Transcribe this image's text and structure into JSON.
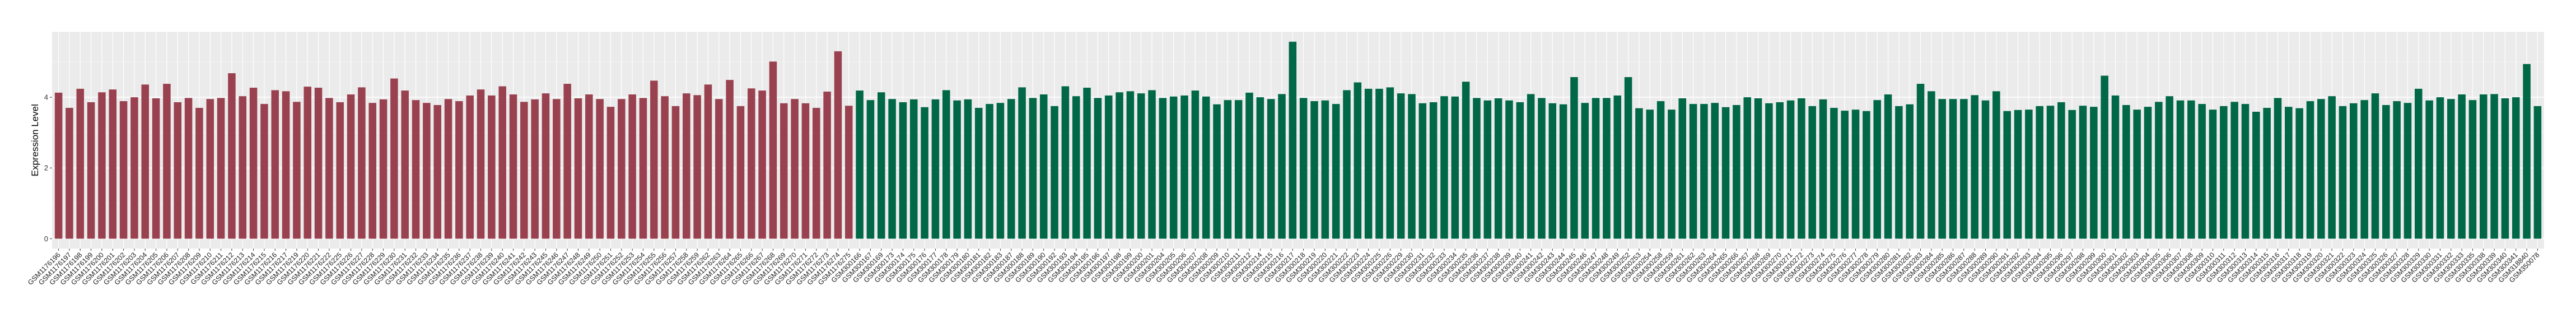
{
  "chart_data": {
    "type": "bar",
    "title": "",
    "xlabel": "",
    "ylabel": "Expression Level",
    "ylim": [
      -0.28,
      5.85
    ],
    "yticks": [
      0,
      2,
      4
    ],
    "grid": true,
    "panel_background": "#EBEBEB",
    "series": [
      {
        "color": "#9A4150",
        "categories": [
          "GSM1176196",
          "GSM1176197",
          "GSM1176198",
          "GSM1176199",
          "GSM1176200",
          "GSM1176201",
          "GSM1176202",
          "GSM1176203",
          "GSM1176204",
          "GSM1176205",
          "GSM1176206",
          "GSM1176207",
          "GSM1176208",
          "GSM1176209",
          "GSM1176210",
          "GSM1176211",
          "GSM1176212",
          "GSM1176213",
          "GSM1176214",
          "GSM1176215",
          "GSM1176216",
          "GSM1176217",
          "GSM1176219",
          "GSM1176220",
          "GSM1176221",
          "GSM1176222",
          "GSM1176225",
          "GSM1176226",
          "GSM1176227",
          "GSM1176228",
          "GSM1176229",
          "GSM1176230",
          "GSM1176231",
          "GSM1176232",
          "GSM1176233",
          "GSM1176234",
          "GSM1176235",
          "GSM1176236",
          "GSM1176237",
          "GSM1176238",
          "GSM1176239",
          "GSM1176240",
          "GSM1176241",
          "GSM1176242",
          "GSM1176243",
          "GSM1176245",
          "GSM1176246",
          "GSM1176247",
          "GSM1176248",
          "GSM1176249",
          "GSM1176250",
          "GSM1176251",
          "GSM1176252",
          "GSM1176253",
          "GSM1176254",
          "GSM1176255",
          "GSM1176256",
          "GSM1176257",
          "GSM1176258",
          "GSM1176259",
          "GSM1176262",
          "GSM1176263",
          "GSM1176264",
          "GSM1176265",
          "GSM1176266",
          "GSM1176267",
          "GSM1176268",
          "GSM1176269",
          "GSM1176270",
          "GSM1176271",
          "GSM1176272",
          "GSM1176273",
          "GSM1176274",
          "GSM1176275"
        ],
        "values": [
          4.13,
          3.7,
          4.24,
          3.86,
          4.14,
          4.22,
          3.89,
          4.0,
          4.36,
          3.97,
          4.38,
          3.86,
          3.98,
          3.7,
          3.95,
          3.98,
          4.68,
          4.03,
          4.27,
          3.81,
          4.2,
          4.17,
          3.87,
          4.3,
          4.27,
          3.98,
          3.86,
          4.08,
          4.28,
          3.84,
          3.94,
          4.53,
          4.19,
          3.92,
          3.84,
          3.78,
          3.95,
          3.89,
          4.05,
          4.22,
          4.05,
          4.31,
          4.08,
          3.87,
          3.94,
          4.11,
          3.95,
          4.38,
          3.97,
          4.08,
          3.95,
          3.73,
          3.95,
          4.08,
          3.98,
          4.47,
          4.03,
          3.75,
          4.11,
          4.06,
          4.36,
          3.95,
          4.49,
          3.75,
          4.25,
          4.19,
          5.01,
          3.83,
          3.95,
          3.83,
          3.7,
          4.16,
          5.3,
          3.76
        ]
      },
      {
        "color": "#006846",
        "categories": [
          "GSM300166",
          "GSM300167",
          "GSM300169",
          "GSM300173",
          "GSM300174",
          "GSM300175",
          "GSM300176",
          "GSM300177",
          "GSM300178",
          "GSM300179",
          "GSM300180",
          "GSM300181",
          "GSM300182",
          "GSM300183",
          "GSM300187",
          "GSM300188",
          "GSM300189",
          "GSM300190",
          "GSM300192",
          "GSM300193",
          "GSM300194",
          "GSM300195",
          "GSM300196",
          "GSM300197",
          "GSM300198",
          "GSM300199",
          "GSM300200",
          "GSM300201",
          "GSM300204",
          "GSM300205",
          "GSM300206",
          "GSM300207",
          "GSM300208",
          "GSM300209",
          "GSM300210",
          "GSM300211",
          "GSM300212",
          "GSM300214",
          "GSM300215",
          "GSM300216",
          "GSM300217",
          "GSM300218",
          "GSM300219",
          "GSM300220",
          "GSM300221",
          "GSM300222",
          "GSM300223",
          "GSM300224",
          "GSM300225",
          "GSM300226",
          "GSM300229",
          "GSM300230",
          "GSM300231",
          "GSM300232",
          "GSM300233",
          "GSM300234",
          "GSM300235",
          "GSM300236",
          "GSM300237",
          "GSM300238",
          "GSM300239",
          "GSM300240",
          "GSM300241",
          "GSM300242",
          "GSM300243",
          "GSM300244",
          "GSM300245",
          "GSM300246",
          "GSM300247",
          "GSM300248",
          "GSM300249",
          "GSM300252",
          "GSM300253",
          "GSM300254",
          "GSM300258",
          "GSM300259",
          "GSM300261",
          "GSM300262",
          "GSM300263",
          "GSM300264",
          "GSM300265",
          "GSM300266",
          "GSM300267",
          "GSM300268",
          "GSM300269",
          "GSM300270",
          "GSM300271",
          "GSM300272",
          "GSM300273",
          "GSM300274",
          "GSM300275",
          "GSM300276",
          "GSM300277",
          "GSM300278",
          "GSM300279",
          "GSM300280",
          "GSM300281",
          "GSM300282",
          "GSM300283",
          "GSM300284",
          "GSM300285",
          "GSM300286",
          "GSM300287",
          "GSM300288",
          "GSM300289",
          "GSM300290",
          "GSM300291",
          "GSM300292",
          "GSM300293",
          "GSM300294",
          "GSM300295",
          "GSM300296",
          "GSM300297",
          "GSM300298",
          "GSM300299",
          "GSM300300",
          "GSM300301",
          "GSM300302",
          "GSM300303",
          "GSM300304",
          "GSM300305",
          "GSM300306",
          "GSM300307",
          "GSM300308",
          "GSM300309",
          "GSM300310",
          "GSM300311",
          "GSM300312",
          "GSM300313",
          "GSM300314",
          "GSM300315",
          "GSM300316",
          "GSM300317",
          "GSM300318",
          "GSM300319",
          "GSM300320",
          "GSM300321",
          "GSM300322",
          "GSM300323",
          "GSM300324",
          "GSM300325",
          "GSM300326",
          "GSM300327",
          "GSM300328",
          "GSM300329",
          "GSM300330",
          "GSM300331",
          "GSM300332",
          "GSM300333",
          "GSM300335",
          "GSM300338",
          "GSM300339",
          "GSM300340",
          "GSM300341",
          "GSM318840",
          "GSM350078"
        ],
        "values": [
          4.19,
          3.92,
          4.14,
          3.95,
          3.86,
          3.94,
          3.72,
          3.94,
          4.2,
          3.91,
          3.94,
          3.7,
          3.81,
          3.84,
          3.95,
          4.28,
          3.98,
          4.08,
          3.75,
          4.31,
          4.03,
          4.27,
          3.98,
          4.05,
          4.14,
          4.17,
          4.11,
          4.2,
          3.98,
          4.02,
          4.05,
          4.19,
          4.02,
          3.8,
          3.92,
          3.92,
          4.13,
          4.0,
          3.95,
          4.09,
          5.57,
          3.98,
          3.89,
          3.91,
          3.81,
          4.2,
          4.42,
          4.24,
          4.24,
          4.28,
          4.11,
          4.09,
          3.83,
          3.86,
          4.03,
          4.02,
          4.44,
          3.98,
          3.91,
          3.97,
          3.91,
          3.86,
          4.09,
          3.98,
          3.83,
          3.8,
          4.57,
          3.84,
          3.98,
          3.98,
          4.05,
          4.57,
          3.69,
          3.65,
          3.89,
          3.65,
          3.97,
          3.81,
          3.81,
          3.84,
          3.72,
          3.78,
          4.0,
          3.97,
          3.83,
          3.86,
          3.91,
          3.97,
          3.75,
          3.94,
          3.7,
          3.62,
          3.65,
          3.61,
          3.92,
          4.08,
          3.75,
          3.8,
          4.38,
          4.17,
          3.95,
          3.95,
          3.95,
          4.06,
          3.91,
          4.17,
          3.61,
          3.64,
          3.65,
          3.75,
          3.76,
          3.86,
          3.64,
          3.76,
          3.73,
          4.61,
          4.05,
          3.78,
          3.65,
          3.73,
          3.87,
          4.03,
          3.91,
          3.91,
          3.81,
          3.65,
          3.75,
          3.87,
          3.81,
          3.59,
          3.7,
          3.98,
          3.73,
          3.69,
          3.89,
          3.95,
          4.03,
          3.75,
          3.83,
          3.92,
          4.11,
          3.78,
          3.89,
          3.84,
          4.24,
          3.91,
          4.0,
          3.95,
          4.08,
          3.92,
          4.08,
          4.09,
          3.97,
          4.0,
          4.94,
          3.75
        ]
      }
    ]
  }
}
